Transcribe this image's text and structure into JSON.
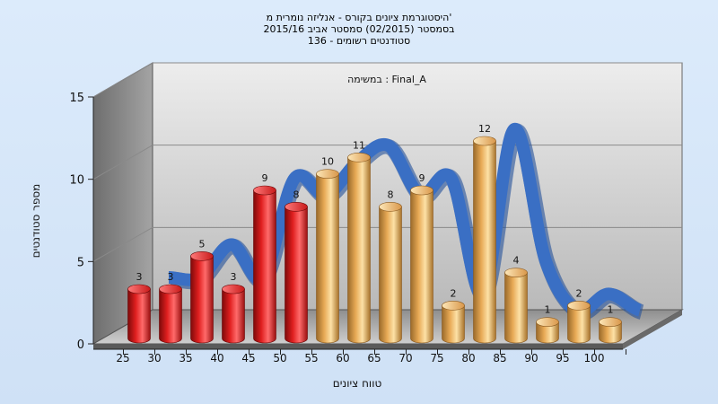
{
  "chart_data": {
    "type": "bar",
    "title_lines": [
      "היסטוגרמת ציונים בקורס - אנליזה נומרית מ'",
      "בסמסטר  (02/2015)  סמסטר אביב 2015/16",
      "סטודנטים רשומים - 136"
    ],
    "subtitle": "במשימה : Final_A",
    "xlabel": "טווח ציונים",
    "ylabel": "מספר סטודנטים",
    "categories": [
      "25",
      "30",
      "35",
      "40",
      "45",
      "50",
      "55",
      "60",
      "65",
      "70",
      "75",
      "80",
      "85",
      "90",
      "95",
      "100"
    ],
    "values": [
      3,
      3,
      5,
      3,
      9,
      8,
      10,
      11,
      8,
      9,
      2,
      12,
      4,
      1,
      2,
      1
    ],
    "bar_colors": [
      "red",
      "red",
      "red",
      "red",
      "red",
      "red",
      "orange",
      "orange",
      "orange",
      "orange",
      "orange",
      "orange",
      "orange",
      "orange",
      "orange",
      "orange"
    ],
    "colors": {
      "red": "#e01f1f",
      "orange": "#e7a955",
      "ribbon": "#3a6fc4"
    },
    "ylim": [
      0,
      15
    ],
    "yticks": [
      0,
      5,
      10,
      15
    ],
    "grid": true,
    "has_trend_ribbon": true
  }
}
